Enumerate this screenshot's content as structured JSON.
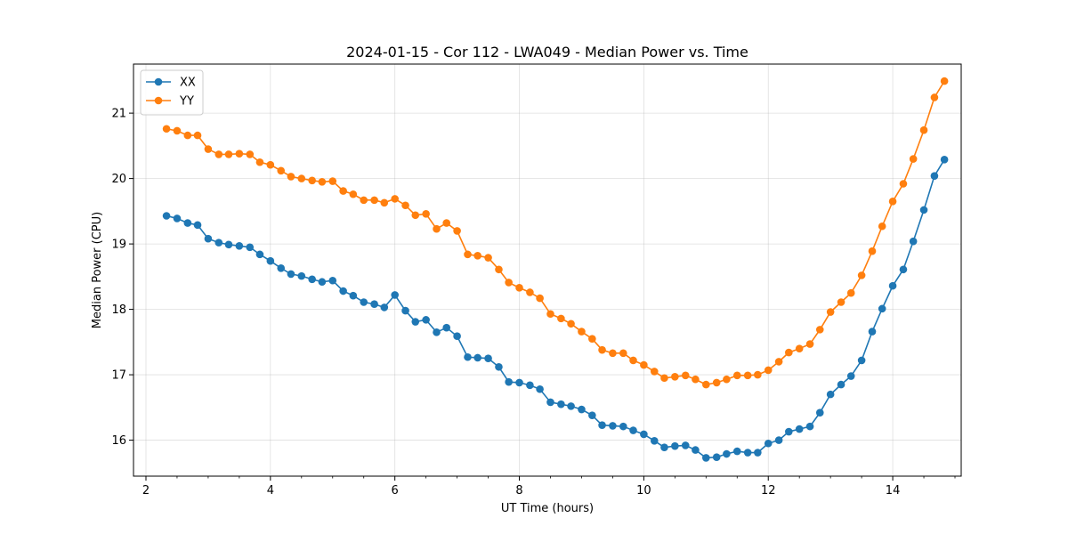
{
  "chart_data": {
    "type": "line",
    "title": "2024-01-15 - Cor 112 - LWA049 - Median Power vs. Time",
    "xlabel": "UT Time (hours)",
    "ylabel": "Median Power (CPU)",
    "xlim": [
      1.8,
      15.1
    ],
    "ylim": [
      15.45,
      21.75
    ],
    "xticks": [
      2,
      4,
      6,
      8,
      10,
      12,
      14
    ],
    "yticks": [
      16,
      17,
      18,
      19,
      20,
      21
    ],
    "grid": true,
    "legend_position": "top-left",
    "x": [
      2.33,
      2.5,
      2.67,
      2.83,
      3.0,
      3.17,
      3.33,
      3.5,
      3.67,
      3.83,
      4.0,
      4.17,
      4.33,
      4.5,
      4.67,
      4.83,
      5.0,
      5.17,
      5.33,
      5.5,
      5.67,
      5.83,
      6.0,
      6.17,
      6.33,
      6.5,
      6.67,
      6.83,
      7.0,
      7.17,
      7.33,
      7.5,
      7.67,
      7.83,
      8.0,
      8.17,
      8.33,
      8.5,
      8.67,
      8.83,
      9.0,
      9.17,
      9.33,
      9.5,
      9.67,
      9.83,
      10.0,
      10.17,
      10.33,
      10.5,
      10.67,
      10.83,
      11.0,
      11.17,
      11.33,
      11.5,
      11.67,
      11.83,
      12.0,
      12.17,
      12.33,
      12.5,
      12.67,
      12.83,
      13.0,
      13.17,
      13.33,
      13.5,
      13.67,
      13.83,
      14.0,
      14.17,
      14.33,
      14.5,
      14.67,
      14.83
    ],
    "series": [
      {
        "name": "XX",
        "color": "#1f77b4",
        "values": [
          19.43,
          19.39,
          19.32,
          19.29,
          19.08,
          19.02,
          18.99,
          18.97,
          18.95,
          18.84,
          18.74,
          18.63,
          18.54,
          18.51,
          18.46,
          18.42,
          18.44,
          18.28,
          18.21,
          18.11,
          18.08,
          18.03,
          18.22,
          17.98,
          17.81,
          17.84,
          17.65,
          17.72,
          17.59,
          17.27,
          17.26,
          17.25,
          17.12,
          16.89,
          16.88,
          16.84,
          16.78,
          16.58,
          16.55,
          16.52,
          16.47,
          16.38,
          16.23,
          16.22,
          16.21,
          16.15,
          16.09,
          15.99,
          15.89,
          15.91,
          15.92,
          15.85,
          15.73,
          15.74,
          15.79,
          15.83,
          15.81,
          15.81,
          15.95,
          16.0,
          16.13,
          16.17,
          16.21,
          16.42,
          16.7,
          16.85,
          16.98,
          17.22,
          17.66,
          18.01,
          18.36,
          18.61,
          19.04,
          19.52,
          20.04,
          20.29
        ]
      },
      {
        "name": "YY",
        "color": "#ff7f0e",
        "values": [
          20.76,
          20.73,
          20.66,
          20.66,
          20.45,
          20.37,
          20.37,
          20.38,
          20.37,
          20.25,
          20.21,
          20.12,
          20.03,
          20.0,
          19.97,
          19.95,
          19.96,
          19.81,
          19.76,
          19.67,
          19.67,
          19.63,
          19.69,
          19.59,
          19.44,
          19.46,
          19.23,
          19.32,
          19.2,
          18.84,
          18.82,
          18.79,
          18.61,
          18.41,
          18.33,
          18.26,
          18.17,
          17.93,
          17.86,
          17.78,
          17.66,
          17.55,
          17.38,
          17.33,
          17.33,
          17.22,
          17.15,
          17.05,
          16.95,
          16.97,
          16.99,
          16.93,
          16.85,
          16.88,
          16.93,
          16.99,
          16.99,
          17.0,
          17.07,
          17.2,
          17.34,
          17.4,
          17.47,
          17.69,
          17.96,
          18.11,
          18.25,
          18.52,
          18.89,
          19.27,
          19.65,
          19.92,
          20.3,
          20.74,
          21.24,
          21.49
        ]
      }
    ]
  }
}
